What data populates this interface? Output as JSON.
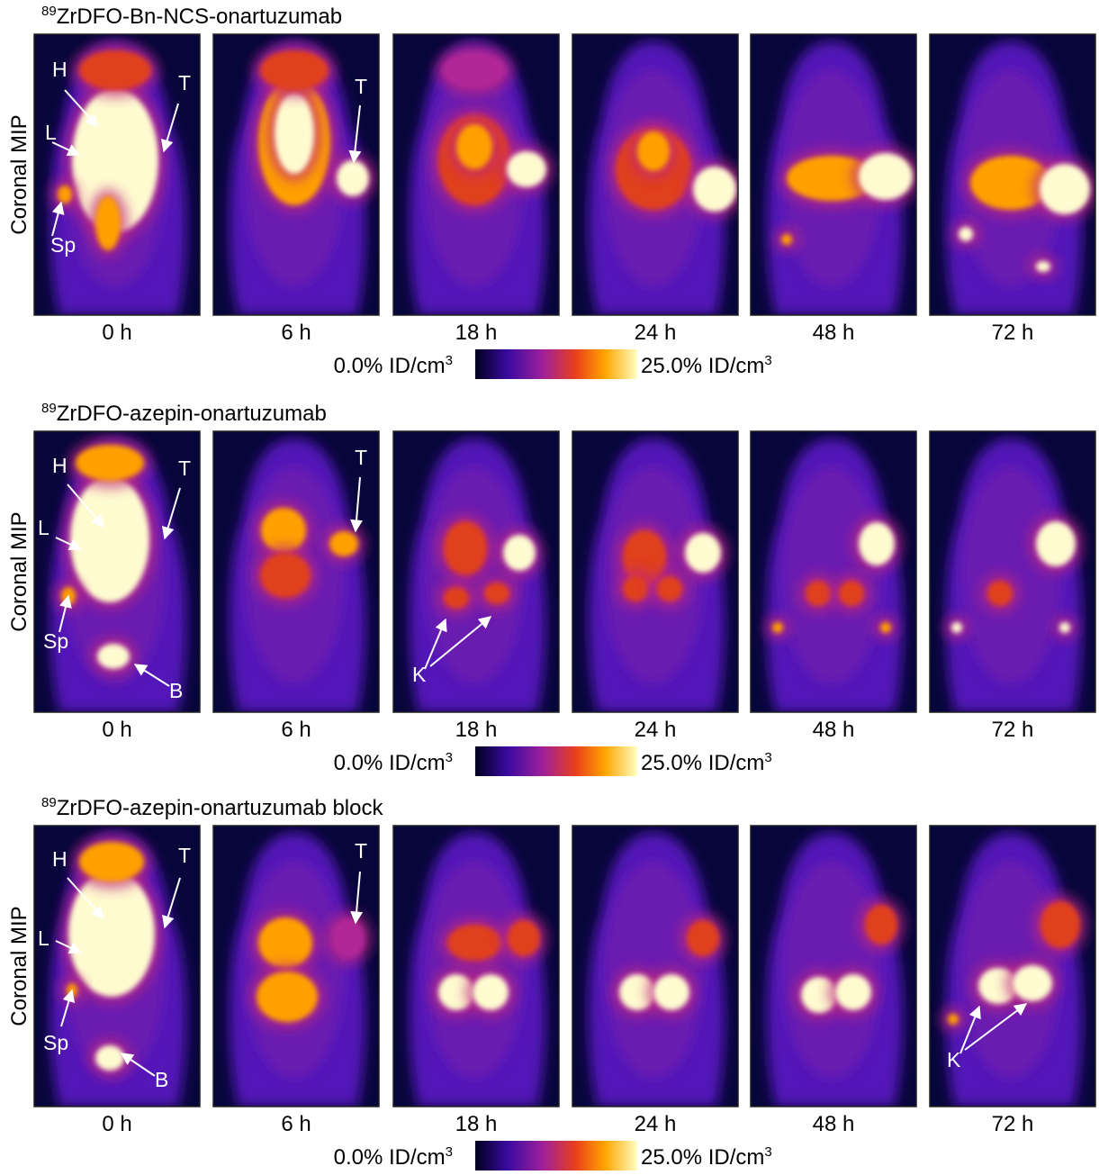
{
  "rows": [
    {
      "title": {
        "sup": "89",
        "text": "ZrDFO-Bn-NCS-onartuzumab"
      },
      "y_label": "Coronal MIP",
      "panels": [
        {
          "time": "0 h",
          "labels": [
            "H",
            "L",
            "T",
            "Sp"
          ]
        },
        {
          "time": "6 h",
          "labels": [
            "T"
          ]
        },
        {
          "time": "18 h",
          "labels": []
        },
        {
          "time": "24 h",
          "labels": []
        },
        {
          "time": "48 h",
          "labels": []
        },
        {
          "time": "72 h",
          "labels": []
        }
      ],
      "colorbar": {
        "min": {
          "text": "0.0% ID/cm",
          "sup": "3"
        },
        "max": {
          "text": "25.0% ID/cm",
          "sup": "3"
        }
      }
    },
    {
      "title": {
        "sup": "89",
        "text": "ZrDFO-azepin-onartuzumab"
      },
      "y_label": "Coronal MIP",
      "panels": [
        {
          "time": "0 h",
          "labels": [
            "H",
            "L",
            "T",
            "Sp",
            "B"
          ]
        },
        {
          "time": "6 h",
          "labels": [
            "T"
          ]
        },
        {
          "time": "18 h",
          "labels": [
            "K"
          ]
        },
        {
          "time": "24 h",
          "labels": []
        },
        {
          "time": "48 h",
          "labels": []
        },
        {
          "time": "72 h",
          "labels": []
        }
      ],
      "colorbar": {
        "min": {
          "text": "0.0% ID/cm",
          "sup": "3"
        },
        "max": {
          "text": "25.0% ID/cm",
          "sup": "3"
        }
      }
    },
    {
      "title": {
        "sup": "89",
        "text": "ZrDFO-azepin-onartuzumab block"
      },
      "y_label": "Coronal MIP",
      "panels": [
        {
          "time": "0 h",
          "labels": [
            "H",
            "L",
            "T",
            "Sp",
            "B"
          ]
        },
        {
          "time": "6 h",
          "labels": [
            "T"
          ]
        },
        {
          "time": "18 h",
          "labels": []
        },
        {
          "time": "24 h",
          "labels": []
        },
        {
          "time": "48 h",
          "labels": []
        },
        {
          "time": "72 h",
          "labels": [
            "K"
          ]
        }
      ],
      "colorbar": {
        "min": {
          "text": "0.0% ID/cm",
          "sup": "3"
        },
        "max": {
          "text": "25.0% ID/cm",
          "sup": "3"
        }
      }
    }
  ]
}
